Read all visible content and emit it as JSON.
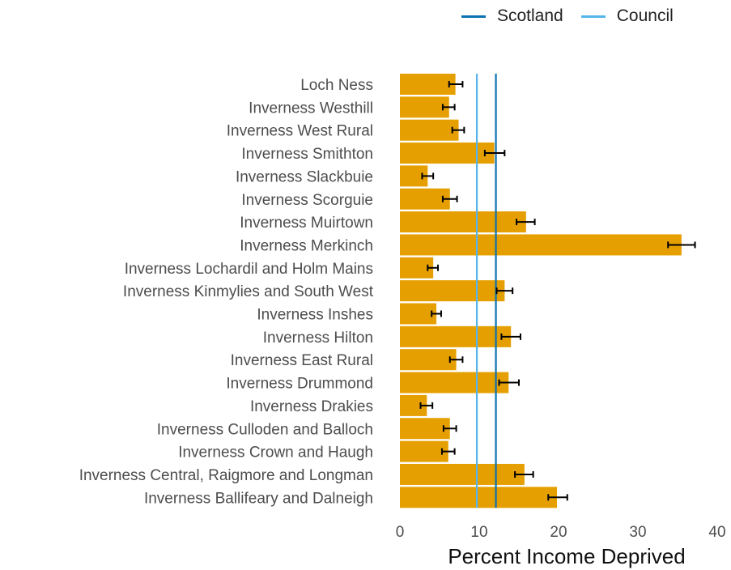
{
  "chart_data": {
    "type": "bar",
    "orientation": "horizontal",
    "xlabel": "Percent Income Deprived",
    "xlim": [
      0,
      40
    ],
    "xticks": [
      0,
      10,
      20,
      30,
      40
    ],
    "grid": false,
    "legend_position": "top-right",
    "bar_color": "#E69F00",
    "categories": [
      "Loch Ness",
      "Inverness Westhill",
      "Inverness West Rural",
      "Inverness Smithton",
      "Inverness Slackbuie",
      "Inverness Scorguie",
      "Inverness Muirtown",
      "Inverness Merkinch",
      "Inverness Lochardil and Holm Mains",
      "Inverness Kinmylies and South West",
      "Inverness Inshes",
      "Inverness Hilton",
      "Inverness East Rural",
      "Inverness Drummond",
      "Inverness Drakies",
      "Inverness Culloden and Balloch",
      "Inverness Crown and Haugh",
      "Inverness Central, Raigmore and Longman",
      "Inverness Ballifeary and Dalneigh"
    ],
    "values": [
      7.0,
      6.2,
      7.4,
      11.9,
      3.5,
      6.3,
      15.9,
      35.5,
      4.2,
      13.2,
      4.6,
      14.0,
      7.1,
      13.7,
      3.4,
      6.3,
      6.1,
      15.7,
      19.8
    ],
    "error_low": [
      6.2,
      5.4,
      6.6,
      10.7,
      2.8,
      5.4,
      14.7,
      33.8,
      3.5,
      12.2,
      4.0,
      12.8,
      6.3,
      12.5,
      2.6,
      5.5,
      5.3,
      14.5,
      18.7
    ],
    "error_high": [
      7.9,
      6.9,
      8.1,
      13.2,
      4.2,
      7.2,
      17.0,
      37.2,
      4.8,
      14.2,
      5.2,
      15.2,
      7.9,
      15.0,
      4.1,
      7.1,
      6.9,
      16.8,
      21.1
    ],
    "reference_lines": [
      {
        "name": "Scotland",
        "value": 12.1,
        "color": "#0B72B0"
      },
      {
        "name": "Council",
        "value": 9.7,
        "color": "#56B4E9"
      }
    ]
  }
}
